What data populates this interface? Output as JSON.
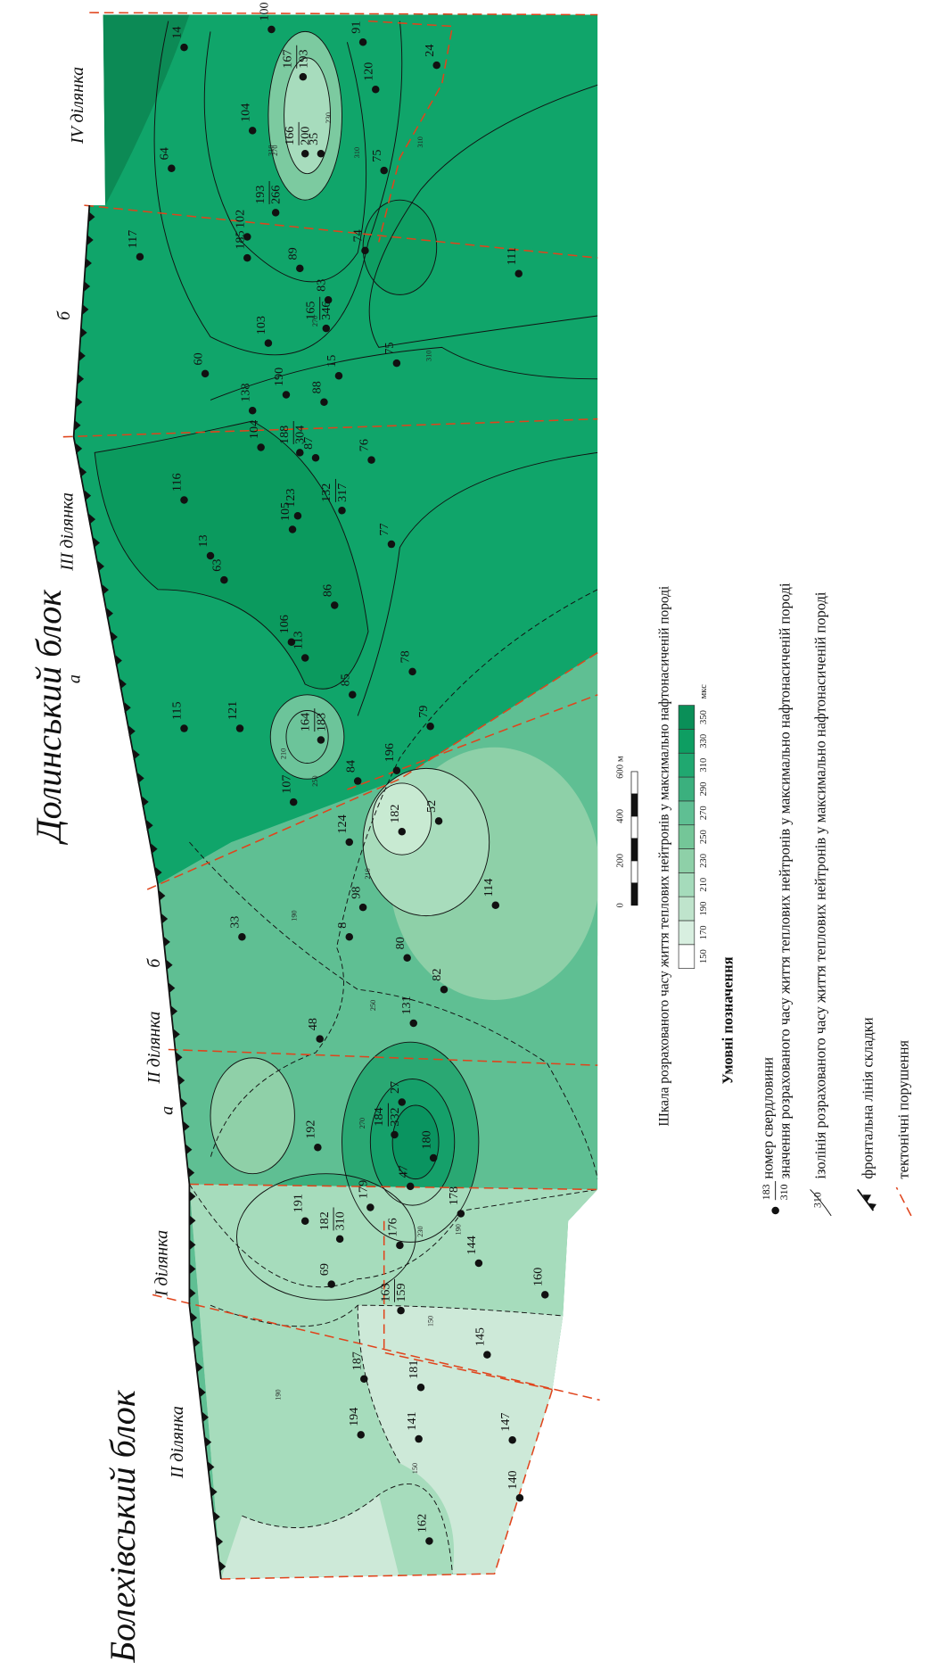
{
  "blocks": [
    "Болехівський блок",
    "Долинський блок"
  ],
  "sections": [
    "IV ділянка",
    "б",
    "III ділянка",
    "а",
    "II ділянка",
    "а",
    "б",
    "I ділянка",
    "II ділянка"
  ],
  "wells": [
    {
      "number": "14"
    },
    {
      "number": "100"
    },
    {
      "number": "91"
    },
    {
      "number": "24"
    },
    {
      "number": "167",
      "value": "193"
    },
    {
      "number": "120"
    },
    {
      "number": "104"
    },
    {
      "number": "166",
      "value": "200"
    },
    {
      "number": "35"
    },
    {
      "number": "64"
    },
    {
      "number": "75"
    },
    {
      "number": "193",
      "value": "266"
    },
    {
      "number": "102"
    },
    {
      "number": "89"
    },
    {
      "number": "117"
    },
    {
      "number": "185"
    },
    {
      "number": "74"
    },
    {
      "number": "111"
    },
    {
      "number": "83"
    },
    {
      "number": "165",
      "value": "346"
    },
    {
      "number": "103"
    },
    {
      "number": "60"
    },
    {
      "number": "190"
    },
    {
      "number": "15"
    },
    {
      "number": "75"
    },
    {
      "number": "88"
    },
    {
      "number": "138"
    },
    {
      "number": "188",
      "value": "304"
    },
    {
      "number": "87"
    },
    {
      "number": "104"
    },
    {
      "number": "76"
    },
    {
      "number": "116"
    },
    {
      "number": "132",
      "value": "317"
    },
    {
      "number": "123"
    },
    {
      "number": "105"
    },
    {
      "number": "13"
    },
    {
      "number": "77"
    },
    {
      "number": "63"
    },
    {
      "number": "86"
    },
    {
      "number": "106"
    },
    {
      "number": "113"
    },
    {
      "number": "78"
    },
    {
      "number": "85"
    },
    {
      "number": "115"
    },
    {
      "number": "121"
    },
    {
      "number": "164",
      "value": "183"
    },
    {
      "number": "79"
    },
    {
      "number": "196"
    },
    {
      "number": "84"
    },
    {
      "number": "107"
    },
    {
      "number": "182"
    },
    {
      "number": "52"
    },
    {
      "number": "124"
    },
    {
      "number": "98"
    },
    {
      "number": "114"
    },
    {
      "number": "33"
    },
    {
      "number": "8"
    },
    {
      "number": "80"
    },
    {
      "number": "82"
    },
    {
      "number": "131"
    },
    {
      "number": "48"
    },
    {
      "number": "27"
    },
    {
      "number": "192"
    },
    {
      "number": "184",
      "value": "332"
    },
    {
      "number": "180"
    },
    {
      "number": "47"
    },
    {
      "number": "191"
    },
    {
      "number": "182",
      "value": "310"
    },
    {
      "number": "179"
    },
    {
      "number": "178"
    },
    {
      "number": "176"
    },
    {
      "number": "144"
    },
    {
      "number": "69"
    },
    {
      "number": "160"
    },
    {
      "number": "163",
      "value": "159"
    },
    {
      "number": "145"
    },
    {
      "number": "187"
    },
    {
      "number": "181"
    },
    {
      "number": "194"
    },
    {
      "number": "141"
    },
    {
      "number": "147"
    },
    {
      "number": "140"
    },
    {
      "number": "162"
    }
  ],
  "isolines": [
    "310",
    "270",
    "230",
    "310",
    "310",
    "310",
    "270",
    "210",
    "250",
    "210",
    "190",
    "250",
    "270",
    "230",
    "190",
    "150",
    "190",
    "150"
  ],
  "lifetime_scale": {
    "title": "Шкала розрахованого часу життя теплових нейтронів у максимально нафтонасиченій породі",
    "values": [
      "150",
      "170",
      "190",
      "210",
      "230",
      "250",
      "270",
      "290",
      "310",
      "330",
      "350"
    ],
    "unit": "мкс"
  },
  "distance_scale": {
    "ticks": [
      "0",
      "200",
      "400",
      "600"
    ],
    "unit": "м"
  },
  "legend": {
    "title": "Умовні позначення",
    "well_example": {
      "number": "183",
      "value": "310"
    },
    "well_number": "номер свердловини",
    "well_value": "значення розрахованого часу життя теплових нейтронів у максимально нафтонасиченій породі",
    "isoline_example": "310",
    "isoline": "ізолінія розрахованого часу життя теплових нейтронів у максимально нафтонасиченій породі",
    "fold_line": "фронтальна лінія складки",
    "faults": "тектонічні порушення"
  }
}
